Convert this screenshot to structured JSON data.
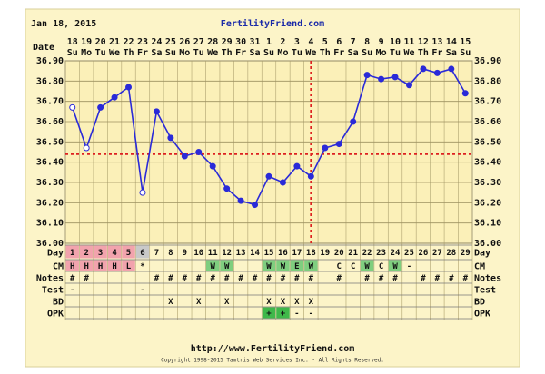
{
  "date": "Jan 18, 2015",
  "site": "FertilityFriend.com",
  "footer_url": "http://www.FertilityFriend.com",
  "copyright": "Copyright 1998-2015 Tamtris Web Services Inc. - All Rights Reserved.",
  "chart_data": {
    "type": "line",
    "x_label": "Date",
    "dates": [
      18,
      19,
      20,
      21,
      22,
      23,
      24,
      25,
      26,
      27,
      28,
      29,
      30,
      31,
      1,
      2,
      3,
      4,
      5,
      6,
      7,
      8,
      9,
      10,
      11,
      12,
      13,
      14,
      15
    ],
    "weekdays": [
      "Su",
      "Mo",
      "Tu",
      "We",
      "Th",
      "Fr",
      "Sa",
      "Su",
      "Mo",
      "Tu",
      "We",
      "Th",
      "Fr",
      "Sa",
      "Su",
      "Mo",
      "Tu",
      "We",
      "Th",
      "Fr",
      "Sa",
      "Su",
      "Mo",
      "Tu",
      "We",
      "Th",
      "Fr",
      "Sa",
      "Su"
    ],
    "ylim": [
      36.0,
      36.9
    ],
    "yticks": [
      {
        "value": 36.0,
        "label": "36.00"
      },
      {
        "value": 36.1,
        "label": "36.10"
      },
      {
        "value": 36.2,
        "label": "36.20"
      },
      {
        "value": 36.3,
        "label": "36.30"
      },
      {
        "value": 36.4,
        "label": "36.40"
      },
      {
        "value": 36.5,
        "label": "36.50"
      },
      {
        "value": 36.6,
        "label": "36.60"
      },
      {
        "value": 36.7,
        "label": "36.70"
      },
      {
        "value": 36.8,
        "label": "36.80"
      },
      {
        "value": 36.9,
        "label": "36.90"
      }
    ],
    "grid": true,
    "series": [
      {
        "color": "#2a2ad8",
        "values": [
          36.67,
          36.47,
          36.67,
          36.72,
          36.77,
          36.25,
          36.65,
          36.52,
          36.43,
          36.45,
          36.38,
          36.27,
          36.21,
          36.19,
          36.33,
          36.3,
          36.38,
          36.33,
          36.47,
          36.49,
          36.6,
          36.83,
          36.81,
          36.82,
          36.78,
          36.86,
          36.84,
          36.86,
          36.74
        ],
        "open_markers": [
          0,
          1,
          5
        ]
      }
    ],
    "coverline": 36.44,
    "ovulation_day": 18,
    "line_marker_color": "#dd2020",
    "rows": [
      {
        "label": "Day",
        "cells": [
          1,
          2,
          3,
          4,
          5,
          6,
          7,
          8,
          9,
          10,
          11,
          12,
          13,
          14,
          15,
          16,
          17,
          18,
          19,
          20,
          21,
          22,
          23,
          24,
          25,
          26,
          27,
          28,
          29
        ],
        "colors": [
          "#f2a3ad",
          "#f2a3ad",
          "#f2a3ad",
          "#f2a3ad",
          "#f2a3ad",
          "#c9c9c9",
          null,
          null,
          null,
          null,
          null,
          null,
          null,
          null,
          null,
          null,
          null,
          null,
          null,
          null,
          null,
          null,
          null,
          null,
          null,
          null,
          null,
          null,
          null
        ]
      },
      {
        "label": "CM",
        "cells": [
          "H",
          "H",
          "H",
          "H",
          "L",
          "*",
          null,
          null,
          null,
          null,
          "W",
          "W",
          null,
          null,
          "W",
          "W",
          "E",
          "W",
          null,
          "C",
          "C",
          "W",
          "C",
          "W",
          "-",
          null,
          null,
          null,
          null
        ],
        "colors": [
          "#f2a3ad",
          "#f2a3ad",
          "#f2a3ad",
          "#f2a3ad",
          "#f2a3ad",
          null,
          null,
          null,
          null,
          null,
          "#7fce7f",
          "#7fce7f",
          null,
          null,
          "#7fce7f",
          "#7fce7f",
          "#7fce7f",
          "#7fce7f",
          null,
          null,
          null,
          "#7fce7f",
          null,
          "#7fce7f",
          null,
          null,
          null,
          null,
          null
        ]
      },
      {
        "label": "Notes",
        "cells": [
          "#",
          "#",
          null,
          null,
          null,
          null,
          "#",
          "#",
          "#",
          "#",
          "#",
          "#",
          "#",
          "#",
          "#",
          "#",
          "#",
          "#",
          null,
          "#",
          null,
          "#",
          "#",
          "#",
          null,
          "#",
          "#",
          "#",
          "#"
        ]
      },
      {
        "label": "Test",
        "cells": [
          "-",
          null,
          null,
          null,
          null,
          "-",
          null,
          null,
          null,
          null,
          null,
          null,
          null,
          null,
          null,
          null,
          null,
          null,
          null,
          null,
          null,
          null,
          null,
          null,
          null,
          null,
          null,
          null,
          null
        ]
      },
      {
        "label": "BD",
        "cells": [
          null,
          null,
          null,
          null,
          null,
          null,
          null,
          "X",
          null,
          "X",
          null,
          "X",
          null,
          null,
          "X",
          "X",
          "X",
          "X",
          null,
          null,
          null,
          null,
          null,
          null,
          null,
          null,
          null,
          null,
          null
        ]
      },
      {
        "label": "OPK",
        "cells": [
          null,
          null,
          null,
          null,
          null,
          null,
          null,
          null,
          null,
          null,
          null,
          null,
          null,
          null,
          "+",
          "+",
          "-",
          "-",
          null,
          null,
          null,
          null,
          null,
          null,
          null,
          null,
          null,
          null,
          null
        ],
        "colors": [
          null,
          null,
          null,
          null,
          null,
          null,
          null,
          null,
          null,
          null,
          null,
          null,
          null,
          null,
          "#3fb84a",
          "#3fb84a",
          null,
          null,
          null,
          null,
          null,
          null,
          null,
          null,
          null,
          null,
          null,
          null,
          null
        ]
      }
    ]
  }
}
